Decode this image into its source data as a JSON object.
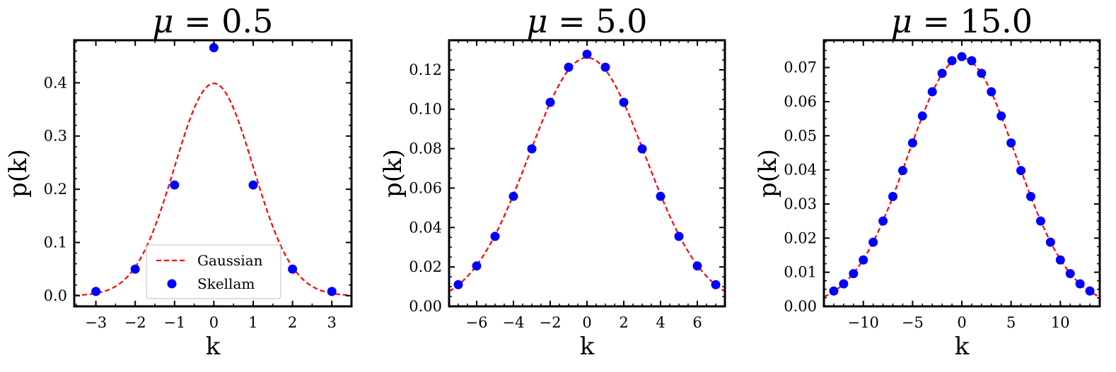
{
  "chart_data": [
    {
      "type": "scatter",
      "title": {
        "symbol": "μ",
        "eq": " = ",
        "value": "0.5"
      },
      "xlabel": "k",
      "ylabel": "p(k)",
      "xlim": [
        -3.55,
        3.5
      ],
      "ylim": [
        -0.02,
        0.48
      ],
      "xticks": [
        -3,
        -2,
        -1,
        0,
        1,
        2,
        3
      ],
      "xtick_labels": [
        "−3",
        "−2",
        "−1",
        "0",
        "1",
        "2",
        "3"
      ],
      "yticks": [
        0.0,
        0.1,
        0.2,
        0.3,
        0.4
      ],
      "ytick_labels": [
        "0.0",
        "0.1",
        "0.2",
        "0.3",
        "0.4"
      ],
      "gaussian": {
        "name": "Gaussian",
        "mean": 0,
        "sigma": 1.0,
        "color": "#ff0000",
        "style": "dashed"
      },
      "skellam": {
        "name": "Skellam",
        "color": "#0000ff",
        "x": [
          -3,
          -2,
          -1,
          0,
          1,
          2,
          3
        ],
        "y": [
          0.008,
          0.05,
          0.208,
          0.466,
          0.208,
          0.05,
          0.008
        ]
      },
      "legend": {
        "position": "lower center",
        "entries": [
          "Gaussian",
          "Skellam"
        ]
      },
      "grid": false
    },
    {
      "type": "scatter",
      "title": {
        "symbol": "μ",
        "eq": " = ",
        "value": "5.0"
      },
      "xlabel": "k",
      "ylabel": "p(k)",
      "xlim": [
        -7.5,
        7.5
      ],
      "ylim": [
        0.0,
        0.135
      ],
      "xticks": [
        -6,
        -4,
        -2,
        0,
        2,
        4,
        6
      ],
      "xtick_labels": [
        "−6",
        "−4",
        "−2",
        "0",
        "2",
        "4",
        "6"
      ],
      "yticks": [
        0.0,
        0.02,
        0.04,
        0.06,
        0.08,
        0.1,
        0.12
      ],
      "ytick_labels": [
        "0.00",
        "0.02",
        "0.04",
        "0.06",
        "0.08",
        "0.10",
        "0.12"
      ],
      "gaussian": {
        "mean": 0,
        "sigma": 3.1623,
        "color": "#ff0000",
        "style": "dashed"
      },
      "skellam": {
        "color": "#0000ff",
        "x": [
          -7,
          -6,
          -5,
          -4,
          -3,
          -2,
          -1,
          0,
          1,
          2,
          3,
          4,
          5,
          6,
          7
        ],
        "y": [
          0.011,
          0.0205,
          0.0355,
          0.0558,
          0.0799,
          0.1035,
          0.1213,
          0.1279,
          0.1213,
          0.1035,
          0.0799,
          0.0558,
          0.0355,
          0.0205,
          0.011
        ]
      },
      "grid": false
    },
    {
      "type": "scatter",
      "title": {
        "symbol": "μ",
        "eq": " = ",
        "value": "15.0"
      },
      "xlabel": "k",
      "ylabel": "p(k)",
      "xlim": [
        -14,
        14
      ],
      "ylim": [
        0.0,
        0.078
      ],
      "xticks": [
        -10,
        -5,
        0,
        5,
        10
      ],
      "xtick_labels": [
        "−10",
        "−5",
        "0",
        "5",
        "10"
      ],
      "yticks": [
        0.0,
        0.01,
        0.02,
        0.03,
        0.04,
        0.05,
        0.06,
        0.07
      ],
      "ytick_labels": [
        "0.00",
        "0.01",
        "0.02",
        "0.03",
        "0.04",
        "0.05",
        "0.06",
        "0.07"
      ],
      "gaussian": {
        "mean": 0,
        "sigma": 5.4772,
        "color": "#ff0000",
        "style": "dashed"
      },
      "skellam": {
        "color": "#0000ff",
        "x": [
          -13,
          -12,
          -11,
          -10,
          -9,
          -8,
          -7,
          -6,
          -5,
          -4,
          -3,
          -2,
          -1,
          0,
          1,
          2,
          3,
          4,
          5,
          6,
          7,
          8,
          9,
          10,
          11,
          12,
          13
        ],
        "y": [
          0.0045,
          0.0066,
          0.0096,
          0.0136,
          0.0188,
          0.025,
          0.0322,
          0.0398,
          0.0479,
          0.0558,
          0.0629,
          0.0683,
          0.072,
          0.0732,
          0.072,
          0.0683,
          0.0629,
          0.0558,
          0.0479,
          0.0398,
          0.0322,
          0.025,
          0.0188,
          0.0136,
          0.0096,
          0.0066,
          0.0045
        ]
      },
      "grid": false
    }
  ]
}
